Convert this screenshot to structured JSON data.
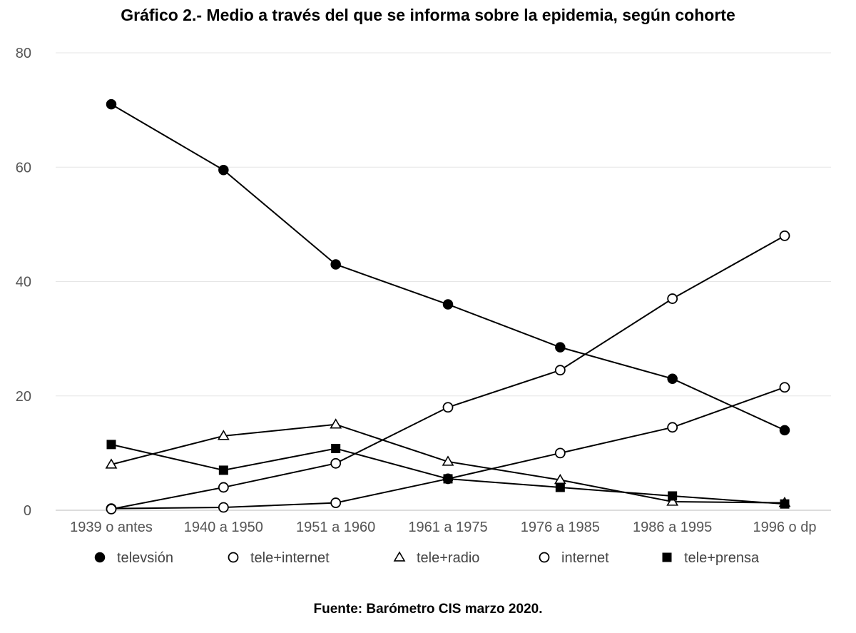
{
  "chart_data": {
    "type": "line",
    "title": "Gráfico 2.- Medio a través del que se informa sobre la epidemia, según cohorte",
    "source": "Fuente: Barómetro CIS marzo 2020.",
    "categories": [
      "1939 o antes",
      "1940 a 1950",
      "1951 a 1960",
      "1961 a 1975",
      "1976 a 1985",
      "1986 a 1995",
      "1996 o dp"
    ],
    "ylim": [
      0,
      80
    ],
    "yticks": [
      0,
      20,
      40,
      60,
      80
    ],
    "grid": true,
    "legend_position": "bottom",
    "series": [
      {
        "name": "televsión",
        "marker": "filled-circle",
        "values": [
          71,
          59.5,
          43,
          36,
          28.5,
          23,
          14
        ]
      },
      {
        "name": "tele+internet",
        "marker": "open-circle",
        "values": [
          0.3,
          0.5,
          1.3,
          5.5,
          10,
          14.5,
          21.5
        ]
      },
      {
        "name": "tele+radio",
        "marker": "open-triangle",
        "values": [
          8,
          13,
          15,
          8.5,
          5.3,
          1.5,
          1.3
        ]
      },
      {
        "name": "internet",
        "marker": "open-circle",
        "values": [
          0.2,
          4,
          8.2,
          18,
          24.5,
          37,
          48
        ]
      },
      {
        "name": "tele+prensa",
        "marker": "filled-square",
        "values": [
          11.5,
          7,
          10.8,
          5.5,
          4,
          2.5,
          1.1
        ]
      }
    ]
  }
}
